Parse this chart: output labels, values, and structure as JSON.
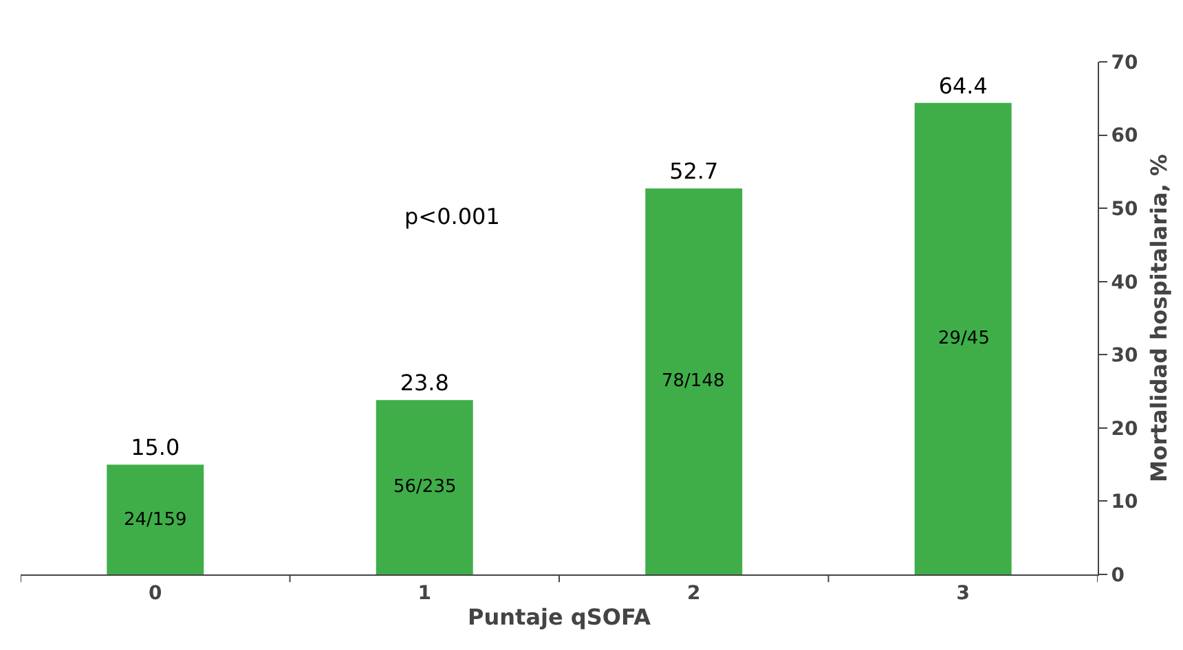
{
  "chart_data": {
    "type": "bar",
    "xlabel": "Puntaje qSOFA",
    "ylabel": "Mortalidad hospitalaria, %",
    "categories": [
      "0",
      "1",
      "2",
      "3"
    ],
    "values": [
      15.0,
      23.8,
      52.7,
      64.4
    ],
    "value_labels": [
      "15.0",
      "23.8",
      "52.7",
      "64.4"
    ],
    "color": "#3fae49",
    "ylim": [
      0,
      70
    ],
    "yticks": [
      0,
      10,
      20,
      30,
      40,
      50,
      60,
      70
    ],
    "grid": false,
    "annotations": [
      "p<0.001",
      "24/159",
      "56/235",
      "78/148",
      "29/45"
    ]
  }
}
